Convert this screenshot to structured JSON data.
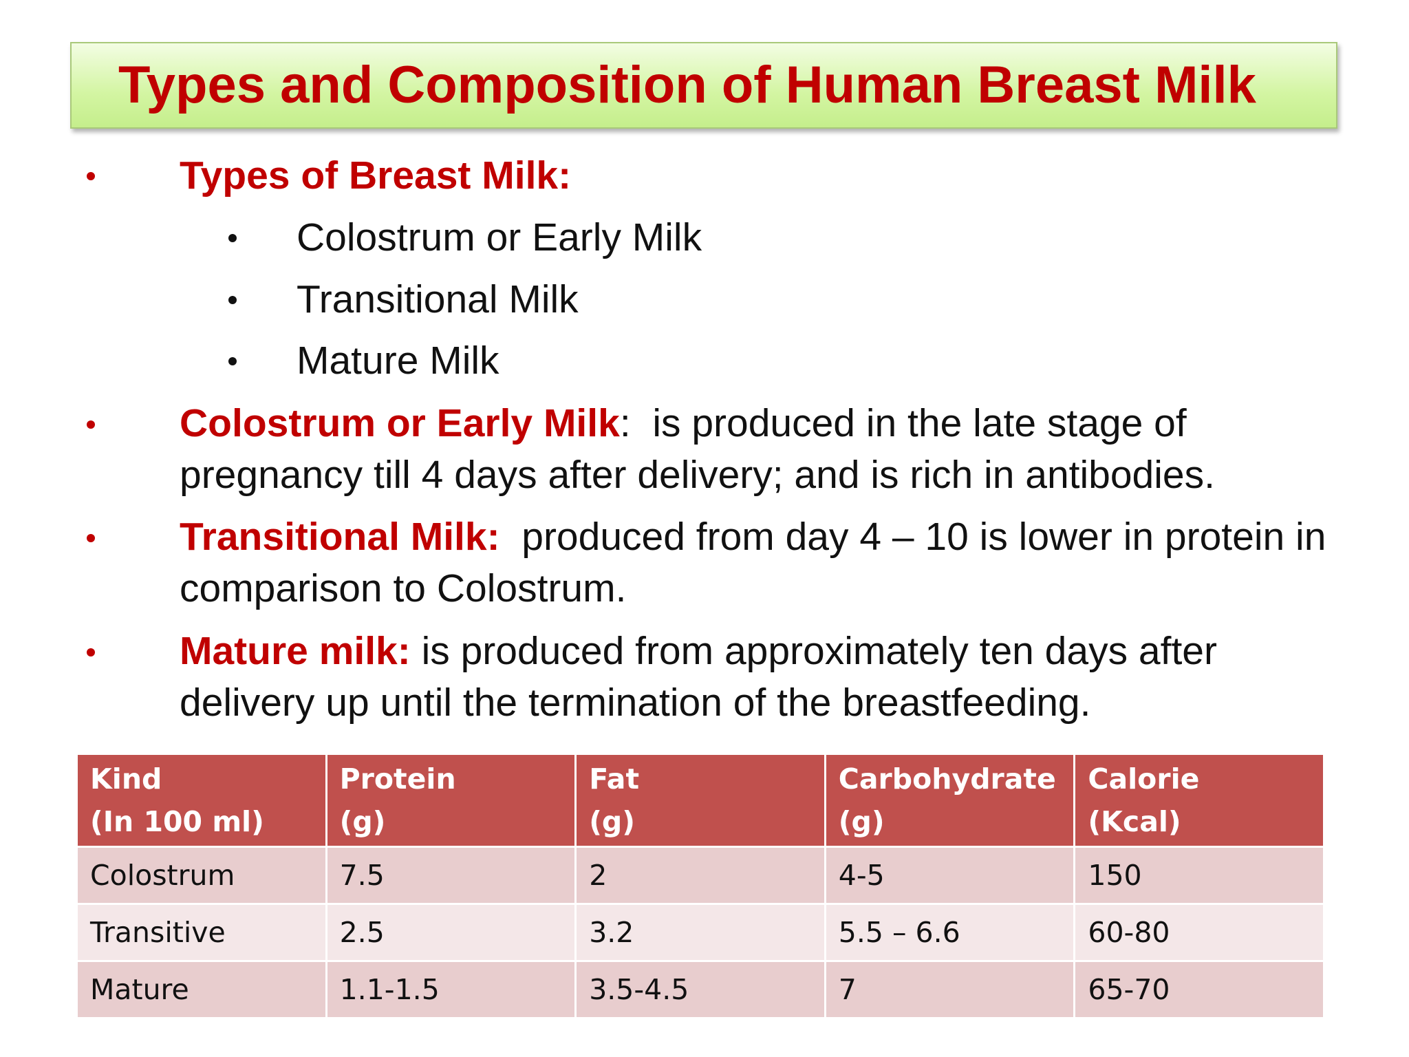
{
  "title": "Types and Composition of Human Breast Milk",
  "types": {
    "heading": "Types of Breast Milk:",
    "items": [
      "Colostrum or Early Milk",
      "Transitional Milk",
      "Mature Milk"
    ]
  },
  "descriptions": [
    {
      "term": "Colostrum or Early Milk",
      "text": ":  is produced in the late stage of pregnancy till 4 days after delivery; and is rich in antibodies."
    },
    {
      "term": "Transitional Milk:",
      "text": "  produced from day 4 – 10 is lower in protein in comparison to Colostrum."
    },
    {
      "term": "Mature milk:",
      "text": " is produced from approximately ten days after delivery up until the termination of the breastfeeding."
    }
  ],
  "table": {
    "header": [
      [
        "Kind",
        "(In 100 ml)"
      ],
      [
        "Protein",
        "(g)"
      ],
      [
        "Fat",
        "(g)"
      ],
      [
        "Carbohydrate",
        "(g)"
      ],
      [
        "Calorie",
        "(Kcal)"
      ]
    ],
    "rows": [
      [
        "Colostrum",
        "7.5",
        "2",
        "4-5",
        "150"
      ],
      [
        "Transitive",
        "2.5",
        "3.2",
        "5.5 – 6.6",
        "60-80"
      ],
      [
        "Mature",
        "1.1-1.5",
        "3.5-4.5",
        "7",
        "65-70"
      ]
    ]
  }
}
